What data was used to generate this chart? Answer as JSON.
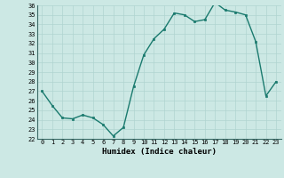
{
  "x": [
    0,
    1,
    2,
    3,
    4,
    5,
    6,
    7,
    8,
    9,
    10,
    11,
    12,
    13,
    14,
    15,
    16,
    17,
    18,
    19,
    20,
    21,
    22,
    23
  ],
  "y": [
    27.0,
    25.5,
    24.2,
    24.1,
    24.5,
    24.2,
    23.5,
    22.3,
    23.2,
    27.5,
    30.8,
    32.5,
    33.5,
    35.2,
    35.0,
    34.3,
    34.5,
    36.3,
    35.5,
    35.3,
    35.0,
    32.2,
    26.5,
    28.0
  ],
  "xlabel": "Humidex (Indice chaleur)",
  "ylim": [
    22,
    36
  ],
  "xlim": [
    -0.5,
    23.5
  ],
  "yticks": [
    22,
    23,
    24,
    25,
    26,
    27,
    28,
    29,
    30,
    31,
    32,
    33,
    34,
    35,
    36
  ],
  "xticks": [
    0,
    1,
    2,
    3,
    4,
    5,
    6,
    7,
    8,
    9,
    10,
    11,
    12,
    13,
    14,
    15,
    16,
    17,
    18,
    19,
    20,
    21,
    22,
    23
  ],
  "line_color": "#1a7a6e",
  "marker_color": "#1a7a6e",
  "bg_color": "#cce8e4",
  "grid_color": "#b0d4d0",
  "xlabel_fontsize": 6.5,
  "tick_fontsize": 5.0,
  "linewidth": 1.0,
  "markersize": 2.0
}
